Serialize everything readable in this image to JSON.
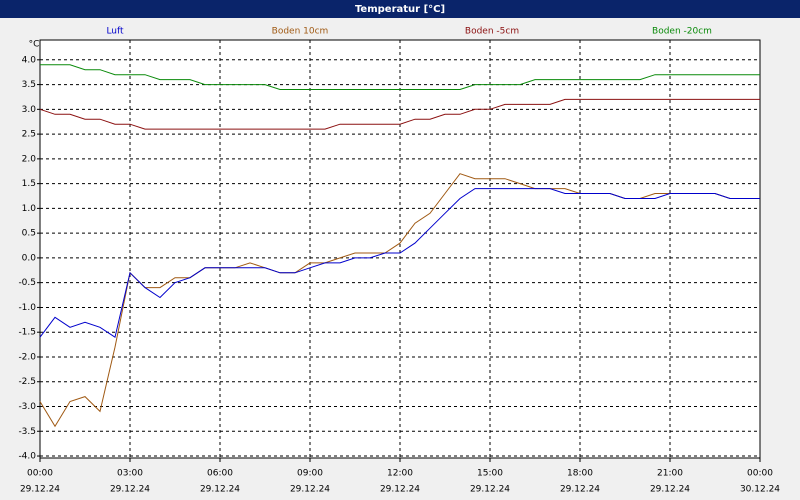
{
  "chart_data": {
    "type": "line",
    "title": "Temperatur [°C]",
    "y_label": "°C",
    "x": [
      0,
      0.5,
      1,
      1.5,
      2,
      2.5,
      3,
      3.5,
      4,
      4.5,
      5,
      5.5,
      6,
      6.5,
      7,
      7.5,
      8,
      8.5,
      9,
      9.5,
      10,
      10.5,
      11,
      11.5,
      12,
      12.5,
      13,
      13.5,
      14,
      14.5,
      15,
      15.5,
      16,
      16.5,
      17,
      17.5,
      18,
      18.5,
      19,
      19.5,
      20,
      20.5,
      21,
      21.5,
      22,
      22.5,
      23,
      23.5,
      24
    ],
    "xlim": [
      0,
      24
    ],
    "xticks": [
      {
        "value": 0,
        "label": "00:00"
      },
      {
        "value": 3,
        "label": "03:00"
      },
      {
        "value": 6,
        "label": "06:00"
      },
      {
        "value": 9,
        "label": "09:00"
      },
      {
        "value": 12,
        "label": "12:00"
      },
      {
        "value": 15,
        "label": "15:00"
      },
      {
        "value": 18,
        "label": "18:00"
      },
      {
        "value": 21,
        "label": "21:00"
      },
      {
        "value": 24,
        "label": "00:00"
      }
    ],
    "xtick_dates": [
      "29.12.24",
      "29.12.24",
      "29.12.24",
      "29.12.24",
      "29.12.24",
      "29.12.24",
      "29.12.24",
      "29.12.24",
      "30.12.24"
    ],
    "ylim": [
      -4.04,
      4.4
    ],
    "yticks": [
      {
        "value": 4,
        "label": "4.0"
      },
      3.5,
      {
        "value": 3,
        "label": "3.0"
      },
      2.5,
      {
        "value": 2,
        "label": "2.0"
      },
      1.5,
      {
        "value": 1,
        "label": "1.0"
      },
      0.5,
      {
        "value": 0,
        "label": "0.0"
      },
      -0.5,
      {
        "value": -1,
        "label": "-1.0"
      },
      -1.5,
      {
        "value": -2,
        "label": "-2.0"
      },
      -2.5,
      {
        "value": -3,
        "label": "-3.0"
      },
      -3.5,
      {
        "value": -4,
        "label": "-4.0"
      }
    ],
    "grid": true,
    "series": [
      {
        "name": "Luft",
        "color": "#0000cc",
        "values": [
          -1.6,
          -1.2,
          -1.4,
          -1.3,
          -1.4,
          -1.6,
          -0.3,
          -0.6,
          -0.8,
          -0.5,
          -0.4,
          -0.2,
          -0.2,
          -0.2,
          -0.2,
          -0.2,
          -0.3,
          -0.3,
          -0.2,
          -0.1,
          -0.1,
          0.0,
          0.0,
          0.1,
          0.1,
          0.3,
          0.6,
          0.9,
          1.2,
          1.4,
          1.4,
          1.4,
          1.4,
          1.4,
          1.4,
          1.3,
          1.3,
          1.3,
          1.3,
          1.2,
          1.2,
          1.2,
          1.3,
          1.3,
          1.3,
          1.3,
          1.2,
          1.2,
          1.2
        ]
      },
      {
        "name": "Boden 10cm",
        "color": "#a05a14",
        "values": [
          -2.9,
          -3.4,
          -2.9,
          -2.8,
          -3.1,
          -1.8,
          -0.3,
          -0.6,
          -0.6,
          -0.4,
          -0.4,
          -0.2,
          -0.2,
          -0.2,
          -0.1,
          -0.2,
          -0.3,
          -0.3,
          -0.1,
          -0.1,
          0.0,
          0.1,
          0.1,
          0.1,
          0.3,
          0.7,
          0.9,
          1.3,
          1.7,
          1.6,
          1.6,
          1.6,
          1.5,
          1.4,
          1.4,
          1.4,
          1.3,
          1.3,
          1.3,
          1.2,
          1.2,
          1.3,
          1.3,
          1.3,
          1.3,
          1.3,
          1.2,
          1.2,
          1.2
        ]
      },
      {
        "name": "Boden -5cm",
        "color": "#8b1010",
        "values": [
          3.0,
          2.9,
          2.9,
          2.8,
          2.8,
          2.7,
          2.7,
          2.6,
          2.6,
          2.6,
          2.6,
          2.6,
          2.6,
          2.6,
          2.6,
          2.6,
          2.6,
          2.6,
          2.6,
          2.6,
          2.7,
          2.7,
          2.7,
          2.7,
          2.7,
          2.8,
          2.8,
          2.9,
          2.9,
          3.0,
          3.0,
          3.1,
          3.1,
          3.1,
          3.1,
          3.2,
          3.2,
          3.2,
          3.2,
          3.2,
          3.2,
          3.2,
          3.2,
          3.2,
          3.2,
          3.2,
          3.2,
          3.2,
          3.2
        ]
      },
      {
        "name": "Boden -20cm",
        "color": "#0a8a0a",
        "values": [
          3.9,
          3.9,
          3.9,
          3.8,
          3.8,
          3.7,
          3.7,
          3.7,
          3.6,
          3.6,
          3.6,
          3.5,
          3.5,
          3.5,
          3.5,
          3.5,
          3.4,
          3.4,
          3.4,
          3.4,
          3.4,
          3.4,
          3.4,
          3.4,
          3.4,
          3.4,
          3.4,
          3.4,
          3.4,
          3.5,
          3.5,
          3.5,
          3.5,
          3.6,
          3.6,
          3.6,
          3.6,
          3.6,
          3.6,
          3.6,
          3.6,
          3.7,
          3.7,
          3.7,
          3.7,
          3.7,
          3.7,
          3.7,
          3.7
        ]
      }
    ]
  }
}
